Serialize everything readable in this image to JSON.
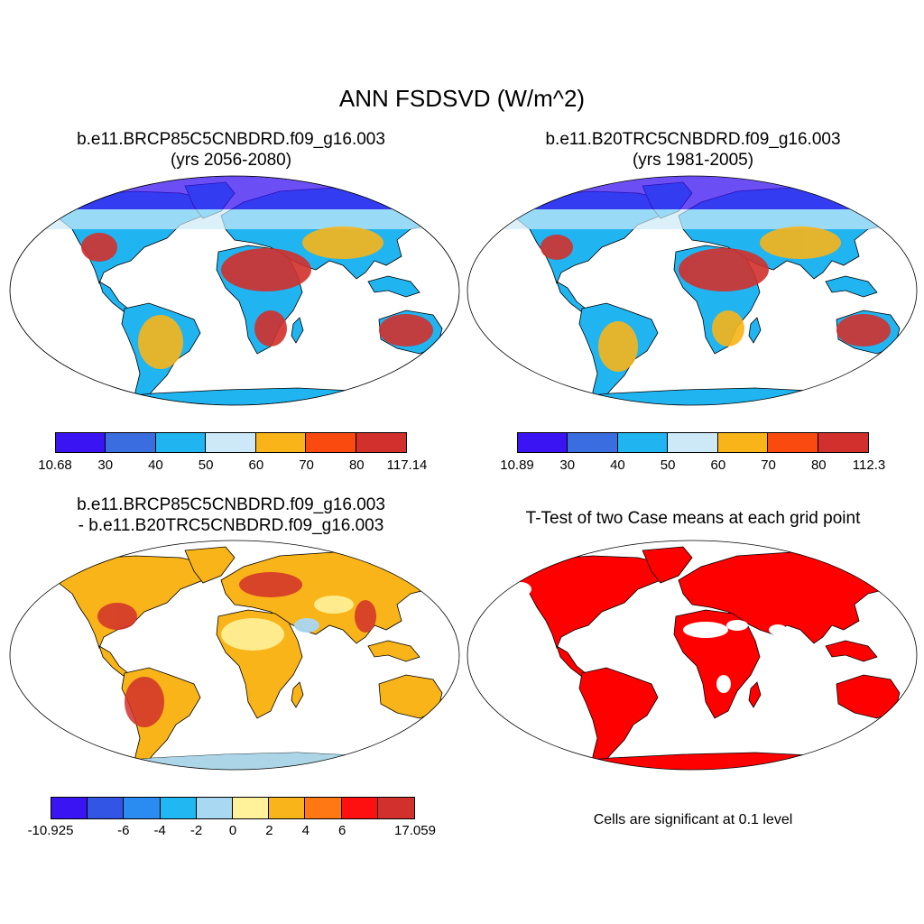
{
  "title": "ANN FSDSVD (W/m^2)",
  "panels": [
    {
      "id": "case",
      "title_line1": "b.e11.BRCP85C5CNBDRD.f09_g16.003",
      "title_line2": "(yrs 2056-2080)",
      "colorbar": {
        "colors": [
          "#3a14f2",
          "#3a6ee0",
          "#20b4f0",
          "#cde9f8",
          "#f8b418",
          "#fa4a10",
          "#d2302c"
        ],
        "labels": [
          "10.68",
          "30",
          "40",
          "50",
          "60",
          "70",
          "80",
          "117.14"
        ]
      }
    },
    {
      "id": "control",
      "title_line1": "b.e11.B20TRC5CNBDRD.f09_g16.003",
      "title_line2": "(yrs 1981-2005)",
      "colorbar": {
        "colors": [
          "#3a14f2",
          "#3a6ee0",
          "#20b4f0",
          "#cde9f8",
          "#f8b418",
          "#fa4a10",
          "#d2302c"
        ],
        "labels": [
          "10.89",
          "30",
          "40",
          "50",
          "60",
          "70",
          "80",
          "112.3"
        ]
      }
    },
    {
      "id": "difference",
      "title_line1": "b.e11.BRCP85C5CNBDRD.f09_g16.003",
      "title_line2": "- b.e11.B20TRC5CNBDRD.f09_g16.003",
      "colorbar": {
        "colors": [
          "#3a14f2",
          "#3355e6",
          "#2a8cf0",
          "#20b8f2",
          "#a8d8f2",
          "#fff29a",
          "#f8b418",
          "#ff7814",
          "#ff1010",
          "#d2302c"
        ],
        "labels": [
          "-10.925",
          "-6",
          "-4",
          "-2",
          "0",
          "2",
          "4",
          "6",
          "17.059"
        ]
      }
    },
    {
      "id": "ttest",
      "title_line1": "T-Test of two Case means at each grid point",
      "note": "Cells are significant at 0.1 level",
      "color": "#ff0000"
    }
  ]
}
